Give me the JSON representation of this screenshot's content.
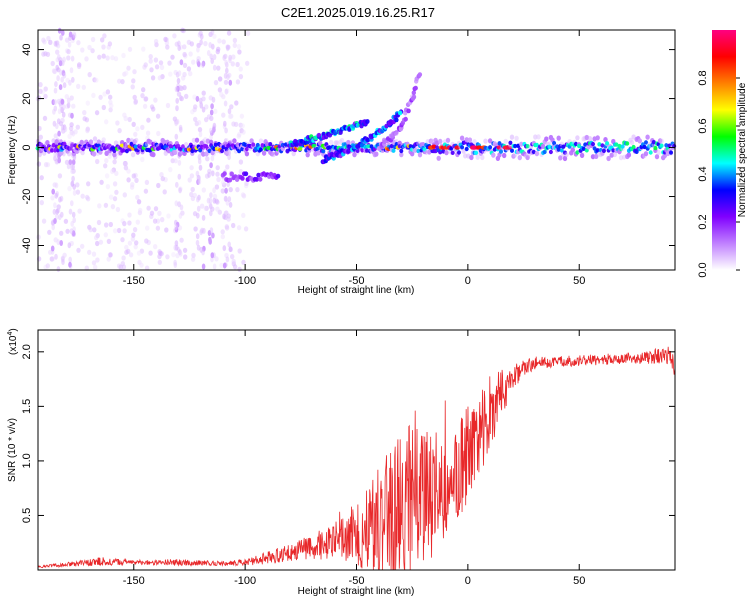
{
  "title": "C2E1.2025.019.16.25.R17",
  "colors": {
    "snr_line": "#e8282a",
    "background": "#ffffff",
    "colormap": [
      "#ffffff",
      "#c080ff",
      "#8000ff",
      "#0000ff",
      "#00ffff",
      "#00ff00",
      "#ffff00",
      "#ff8000",
      "#ff0000",
      "#ff0080"
    ]
  },
  "chart_data": [
    {
      "type": "heatmap",
      "title": "C2E1.2025.019.16.25.R17",
      "xlabel": "Height of straight line (km)",
      "ylabel": "Frequency (Hz)",
      "xlim": [
        -193,
        93
      ],
      "ylim": [
        -50,
        48
      ],
      "x_ticks": [
        -150,
        -100,
        -50,
        0,
        50
      ],
      "x_tick_labels": [
        "-150",
        "-100",
        "-50",
        "0",
        "50"
      ],
      "y_ticks": [
        -40,
        -20,
        0,
        20,
        40
      ],
      "y_tick_labels": [
        "-40",
        "-20",
        "0",
        "20",
        "40"
      ],
      "colorbar": {
        "label": "Normalized spectral amplitude",
        "range": [
          0,
          1
        ],
        "ticks": [
          0.0,
          0.2,
          0.4,
          0.6,
          0.8
        ],
        "tick_labels": [
          "0.0",
          "0.2",
          "0.4",
          "0.6",
          "0.8"
        ]
      },
      "features": [
        {
          "name": "main band",
          "x_range": [
            -193,
            93
          ],
          "frequency": 0,
          "half_width": 3,
          "amplitude_left": 0.3,
          "amplitude_right": 0.55
        },
        {
          "name": "rising branch 1",
          "x": [
            -80,
            -60,
            -50,
            -45
          ],
          "frequency": [
            1,
            6,
            9,
            10
          ],
          "amplitude": 0.4
        },
        {
          "name": "rising branch 2",
          "x": [
            -65,
            -50,
            -35,
            -30
          ],
          "frequency": [
            -5,
            0,
            10,
            14
          ],
          "amplitude": 0.35
        },
        {
          "name": "rising branch 3",
          "x": [
            -40,
            -30,
            -25,
            -22
          ],
          "frequency": [
            0,
            8,
            20,
            30
          ],
          "amplitude": 0.15
        },
        {
          "name": "low branch",
          "x_range": [
            -110,
            -85
          ],
          "frequency": -12,
          "amplitude": 0.25
        }
      ]
    },
    {
      "type": "line",
      "xlabel": "Height of straight line (km)",
      "ylabel": "SNR (10 * v/v)",
      "y_scale_note": "(x10",
      "y_scale_exponent": "4",
      "xlim": [
        -193,
        93
      ],
      "ylim": [
        0,
        2.2
      ],
      "x_ticks": [
        -150,
        -100,
        -50,
        0,
        50
      ],
      "x_tick_labels": [
        "-150",
        "-100",
        "-50",
        "0",
        "50"
      ],
      "y_ticks": [
        0.5,
        1.0,
        1.5,
        2.0
      ],
      "y_tick_labels": [
        "0.5",
        "1.0",
        "1.5",
        "2.0"
      ],
      "series": [
        {
          "color": "#e8282a",
          "x": [
            -193,
            -180,
            -165,
            -150,
            -130,
            -110,
            -100,
            -90,
            -80,
            -70,
            -60,
            -50,
            -40,
            -30,
            -25,
            -20,
            -15,
            -10,
            -5,
            0,
            5,
            10,
            15,
            20,
            25,
            30,
            40,
            50,
            60,
            70,
            80,
            90,
            93
          ],
          "y": [
            0.03,
            0.05,
            0.08,
            0.07,
            0.07,
            0.06,
            0.07,
            0.11,
            0.16,
            0.22,
            0.25,
            0.32,
            0.45,
            0.58,
            0.65,
            0.7,
            0.72,
            0.8,
            0.9,
            1.05,
            1.25,
            1.45,
            1.62,
            1.76,
            1.85,
            1.9,
            1.91,
            1.92,
            1.93,
            1.94,
            1.95,
            1.97,
            1.85
          ],
          "noise_amplitude": [
            0.01,
            0.02,
            0.04,
            0.02,
            0.03,
            0.02,
            0.03,
            0.06,
            0.08,
            0.12,
            0.18,
            0.3,
            0.55,
            0.7,
            0.7,
            0.65,
            0.6,
            0.5,
            0.45,
            0.45,
            0.4,
            0.35,
            0.25,
            0.12,
            0.08,
            0.06,
            0.05,
            0.05,
            0.05,
            0.05,
            0.06,
            0.08,
            0.1
          ]
        }
      ]
    }
  ]
}
